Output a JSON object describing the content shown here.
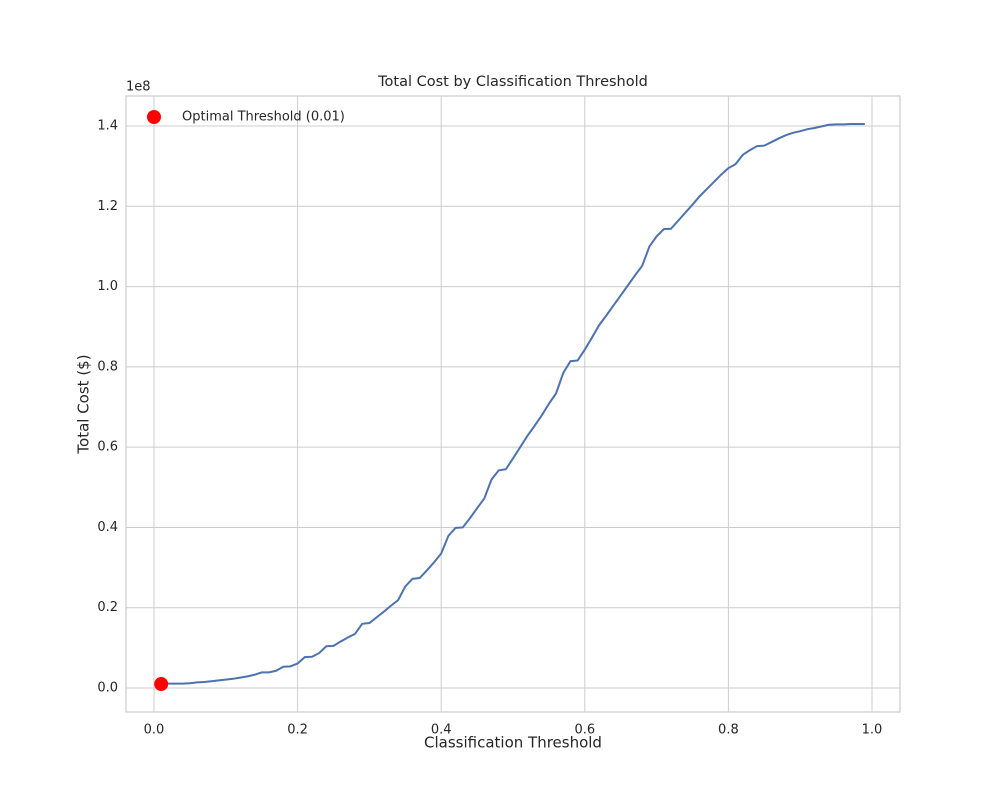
{
  "chart_data": {
    "type": "line",
    "title": "Total Cost by Classification Threshold",
    "xlabel": "Classification Threshold",
    "ylabel": "Total Cost ($)",
    "y_offset_label": "1e8",
    "x": [
      0.01,
      0.02,
      0.03,
      0.04,
      0.05,
      0.06,
      0.07,
      0.08,
      0.09,
      0.1,
      0.11,
      0.12,
      0.13,
      0.14,
      0.15,
      0.16,
      0.17,
      0.18,
      0.19,
      0.2,
      0.21,
      0.22,
      0.23,
      0.24,
      0.25,
      0.26,
      0.27,
      0.28,
      0.29,
      0.3,
      0.31,
      0.32,
      0.33,
      0.34,
      0.35,
      0.36,
      0.37,
      0.38,
      0.39,
      0.4,
      0.41,
      0.42,
      0.43,
      0.44,
      0.45,
      0.46,
      0.47,
      0.48,
      0.49,
      0.5,
      0.51,
      0.52,
      0.53,
      0.54,
      0.55,
      0.56,
      0.57,
      0.58,
      0.59,
      0.6,
      0.61,
      0.62,
      0.63,
      0.64,
      0.65,
      0.66,
      0.67,
      0.68,
      0.69,
      0.7,
      0.71,
      0.72,
      0.73,
      0.74,
      0.75,
      0.76,
      0.77,
      0.78,
      0.79,
      0.8,
      0.81,
      0.82,
      0.83,
      0.84,
      0.85,
      0.86,
      0.87,
      0.88,
      0.89,
      0.9,
      0.91,
      0.92,
      0.93,
      0.94,
      0.95,
      0.96,
      0.97,
      0.98,
      0.99
    ],
    "series": [
      {
        "color": "#4c72b0",
        "values": [
          1000000,
          1100000,
          1100000,
          1100000,
          1200000,
          1400000,
          1500000,
          1700000,
          1900000,
          2100000,
          2300000,
          2600000,
          2900000,
          3300000,
          3900000,
          3900000,
          4300000,
          5300000,
          5400000,
          6100000,
          7700000,
          7800000,
          8700000,
          10400000,
          10500000,
          11600000,
          12600000,
          13500000,
          16000000,
          16200000,
          17600000,
          19000000,
          20500000,
          21900000,
          25300000,
          27200000,
          27400000,
          29300000,
          31300000,
          33500000,
          37900000,
          39900000,
          40000000,
          42300000,
          44800000,
          47200000,
          51900000,
          54200000,
          54500000,
          57200000,
          60000000,
          62800000,
          65300000,
          67900000,
          70800000,
          73400000,
          78500000,
          81400000,
          81600000,
          84300000,
          87300000,
          90400000,
          92800000,
          95300000,
          97800000,
          100300000,
          102800000,
          105200000,
          110000000,
          112500000,
          114300000,
          114400000,
          116400000,
          118400000,
          120400000,
          122500000,
          124300000,
          126100000,
          127900000,
          129500000,
          130500000,
          132800000,
          134000000,
          135000000,
          135100000,
          136000000,
          136900000,
          137700000,
          138300000,
          138700000,
          139200000,
          139500000,
          139900000,
          140300000,
          140400000,
          140400000,
          140500000,
          140500000,
          140500000
        ]
      }
    ],
    "markers": [
      {
        "name": "Optimal Threshold (0.01)",
        "x": 0.01,
        "y": 1000000,
        "color": "#ff0000"
      }
    ],
    "legend": "upper left",
    "grid": true,
    "xlim": [
      -0.039,
      1.039
    ],
    "ylim": [
      -5970000,
      147470000
    ],
    "xticks": [
      {
        "value": 0,
        "label": "0.0"
      },
      {
        "value": 0.2,
        "label": "0.2"
      },
      {
        "value": 0.4,
        "label": "0.4"
      },
      {
        "value": 0.6,
        "label": "0.6"
      },
      {
        "value": 0.8,
        "label": "0.8"
      },
      {
        "value": 1,
        "label": "1.0"
      }
    ],
    "yticks": [
      {
        "value": 0,
        "label": "0.0"
      },
      {
        "value": 20000000,
        "label": "0.2"
      },
      {
        "value": 40000000,
        "label": "0.4"
      },
      {
        "value": 60000000,
        "label": "0.6"
      },
      {
        "value": 80000000,
        "label": "0.8"
      },
      {
        "value": 100000000,
        "label": "1.0"
      },
      {
        "value": 120000000,
        "label": "1.2"
      },
      {
        "value": 140000000,
        "label": "1.4"
      }
    ]
  }
}
